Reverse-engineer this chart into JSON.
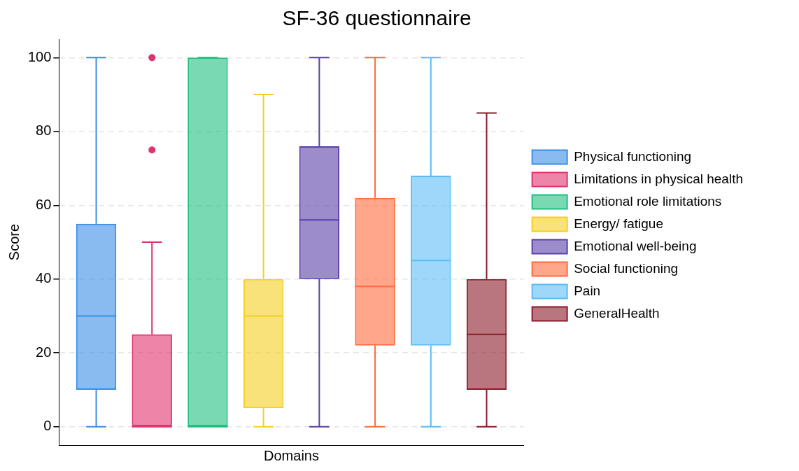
{
  "chart_data": {
    "type": "box",
    "title": "SF-36 questionnaire",
    "xlabel": "Domains",
    "ylabel": "Score",
    "categories": [
      null
    ],
    "ylim": [
      -5,
      105
    ],
    "yticks": [
      0,
      20,
      40,
      60,
      80,
      100
    ],
    "grid": "y",
    "legend": "right",
    "series": [
      {
        "name": "Physical functioning",
        "color": "#3a8ee6",
        "boxes": [
          {
            "low": 0,
            "q1": 10,
            "median": 30,
            "q3": 55,
            "high": 100
          }
        ]
      },
      {
        "name": "Limitations in physical health",
        "color": "#e0336e",
        "boxes": [
          {
            "low": 0,
            "q1": 0,
            "median": 0,
            "q3": 25,
            "high": 50,
            "outliers": [
              75,
              100
            ]
          }
        ]
      },
      {
        "name": "Emotional role limitations",
        "color": "#1fbf7f",
        "boxes": [
          {
            "low": 0,
            "q1": 0,
            "median": 0,
            "q3": 100,
            "high": 100
          }
        ]
      },
      {
        "name": "Energy/ fatigue",
        "color": "#f5cf1f",
        "boxes": [
          {
            "low": 0,
            "q1": 5,
            "median": 30,
            "q3": 40,
            "high": 90
          }
        ]
      },
      {
        "name": "Emotional well-being",
        "color": "#5b3fa8",
        "boxes": [
          {
            "low": 0,
            "q1": 40,
            "median": 56,
            "q3": 76,
            "high": 100
          }
        ]
      },
      {
        "name": "Social functioning",
        "color": "#ff6a3d",
        "boxes": [
          {
            "low": 0,
            "q1": 22,
            "median": 38,
            "q3": 62,
            "high": 100
          }
        ]
      },
      {
        "name": "Pain",
        "color": "#5bbcf5",
        "boxes": [
          {
            "low": 0,
            "q1": 22,
            "median": 45,
            "q3": 68,
            "high": 100
          }
        ]
      },
      {
        "name": "GeneralHealth",
        "color": "#8b1a2a",
        "boxes": [
          {
            "low": 0,
            "q1": 10,
            "median": 25,
            "q3": 40,
            "high": 85
          }
        ]
      }
    ]
  }
}
